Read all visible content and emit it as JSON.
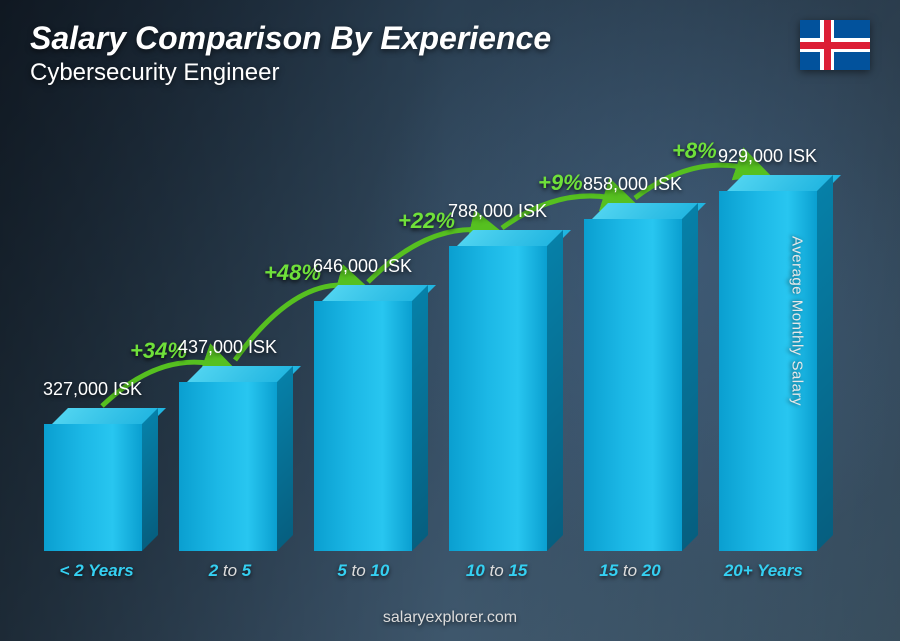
{
  "header": {
    "title": "Salary Comparison By Experience",
    "subtitle": "Cybersecurity Engineer",
    "country_flag": "iceland"
  },
  "chart": {
    "type": "bar",
    "y_axis_label": "Average Monthly Salary",
    "currency": "ISK",
    "bar_color_front": "#1cb8e6",
    "bar_color_top": "#4fd3f0",
    "bar_color_side": "#065f80",
    "value_text_color": "#ffffff",
    "category_color": "#35d0f2",
    "pct_color": "#6fe03a",
    "arrow_color": "#56c020",
    "background_gradient": [
      "#1a2838",
      "#4a6578"
    ],
    "max_value": 929000,
    "bars": [
      {
        "category_html": "< 2 Years",
        "value": 327000,
        "value_label": "327,000 ISK",
        "pct_from_prev": null
      },
      {
        "category_html": "2 <span class='dim'>to</span> 5",
        "value": 437000,
        "value_label": "437,000 ISK",
        "pct_from_prev": "+34%"
      },
      {
        "category_html": "5 <span class='dim'>to</span> 10",
        "value": 646000,
        "value_label": "646,000 ISK",
        "pct_from_prev": "+48%"
      },
      {
        "category_html": "10 <span class='dim'>to</span> 15",
        "value": 788000,
        "value_label": "788,000 ISK",
        "pct_from_prev": "+22%"
      },
      {
        "category_html": "15 <span class='dim'>to</span> 20",
        "value": 858000,
        "value_label": "858,000 ISK",
        "pct_from_prev": "+9%"
      },
      {
        "category_html": "20+ Years",
        "value": 929000,
        "value_label": "929,000 ISK",
        "pct_from_prev": "+8%"
      }
    ]
  },
  "footer": {
    "site": "salaryexplorer.com"
  }
}
